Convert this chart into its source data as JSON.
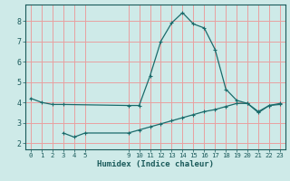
{
  "xlabel": "Humidex (Indice chaleur)",
  "bg_color": "#ceeae8",
  "grid_color": "#e8a0a0",
  "line_color": "#1a6b6b",
  "line1_x": [
    0,
    1,
    2,
    3,
    9,
    10,
    11,
    12,
    13,
    14,
    15,
    16,
    17,
    18,
    19,
    20,
    21,
    22,
    23
  ],
  "line1_y": [
    4.2,
    4.0,
    3.9,
    3.9,
    3.85,
    3.85,
    5.3,
    7.0,
    7.9,
    8.4,
    7.85,
    7.65,
    6.6,
    4.65,
    4.1,
    3.95,
    3.5,
    3.85,
    3.9
  ],
  "line2_x": [
    3,
    4,
    5,
    9,
    10,
    11,
    12,
    13,
    14,
    15,
    16,
    17,
    18,
    19,
    20,
    21,
    22,
    23
  ],
  "line2_y": [
    2.5,
    2.3,
    2.5,
    2.5,
    2.65,
    2.8,
    2.95,
    3.1,
    3.25,
    3.4,
    3.55,
    3.65,
    3.8,
    3.95,
    3.95,
    3.55,
    3.85,
    3.95
  ],
  "xticks": [
    0,
    1,
    2,
    3,
    4,
    5,
    9,
    10,
    11,
    12,
    13,
    14,
    15,
    16,
    17,
    18,
    19,
    20,
    21,
    22,
    23
  ],
  "yticks": [
    2,
    3,
    4,
    5,
    6,
    7,
    8
  ],
  "xlim": [
    -0.5,
    23.5
  ],
  "ylim": [
    1.7,
    8.8
  ]
}
